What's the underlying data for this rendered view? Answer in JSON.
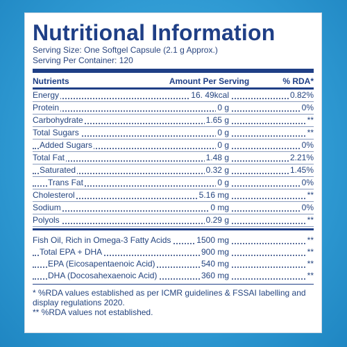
{
  "title": "Nutritional Information",
  "serving_size": "Serving Size: One Softgel Capsule (2.1 g Approx.)",
  "serving_per_container": "Serving Per Container: 120",
  "headers": {
    "nutrients": "Nutrients",
    "amount": "Amount Per Serving",
    "rda": "% RDA*"
  },
  "rows": [
    {
      "name": "Energy",
      "amount": "16. 49kcal",
      "rda": "0.82%"
    },
    {
      "name": "Protein",
      "amount": "0 g",
      "rda": "0%"
    },
    {
      "name": "Carbohydrate",
      "amount": "1.65 g",
      "rda": "**"
    },
    {
      "name": "Total Sugars",
      "amount": "0 g",
      "rda": "**"
    },
    {
      "name": "Added Sugars",
      "amount": "0 g",
      "rda": "0%"
    },
    {
      "name": "Total Fat",
      "amount": "1.48 g",
      "rda": "2.21%"
    },
    {
      "name": "Saturated",
      "amount": "0.32 g",
      "rda": "1.45%"
    },
    {
      "name": "Trans Fat",
      "amount": "0 g",
      "rda": "0%"
    },
    {
      "name": "Cholesterol",
      "amount": "5.16 mg",
      "rda": "**"
    },
    {
      "name": "Sodium",
      "amount": "0 mg",
      "rda": "0%"
    },
    {
      "name": "Polyols",
      "amount": "0.29 g",
      "rda": "**"
    }
  ],
  "rows2": [
    {
      "name": "Fish Oil, Rich in Omega-3 Fatty Acids",
      "amount": "1500 mg",
      "rda": "**"
    },
    {
      "name": "Total EPA + DHA",
      "amount": "900 mg",
      "rda": "**"
    },
    {
      "name": "EPA (Eicosapentaenoic Acid)",
      "amount": "540 mg",
      "rda": "**"
    },
    {
      "name": "DHA (Docosahexaenoic Acid)",
      "amount": "360 mg",
      "rda": "**"
    }
  ],
  "footnote1": "* %RDA values established as per ICMR guidelines & FSSAI labelling and display regulations 2020.",
  "footnote2": "** %RDA values not established."
}
